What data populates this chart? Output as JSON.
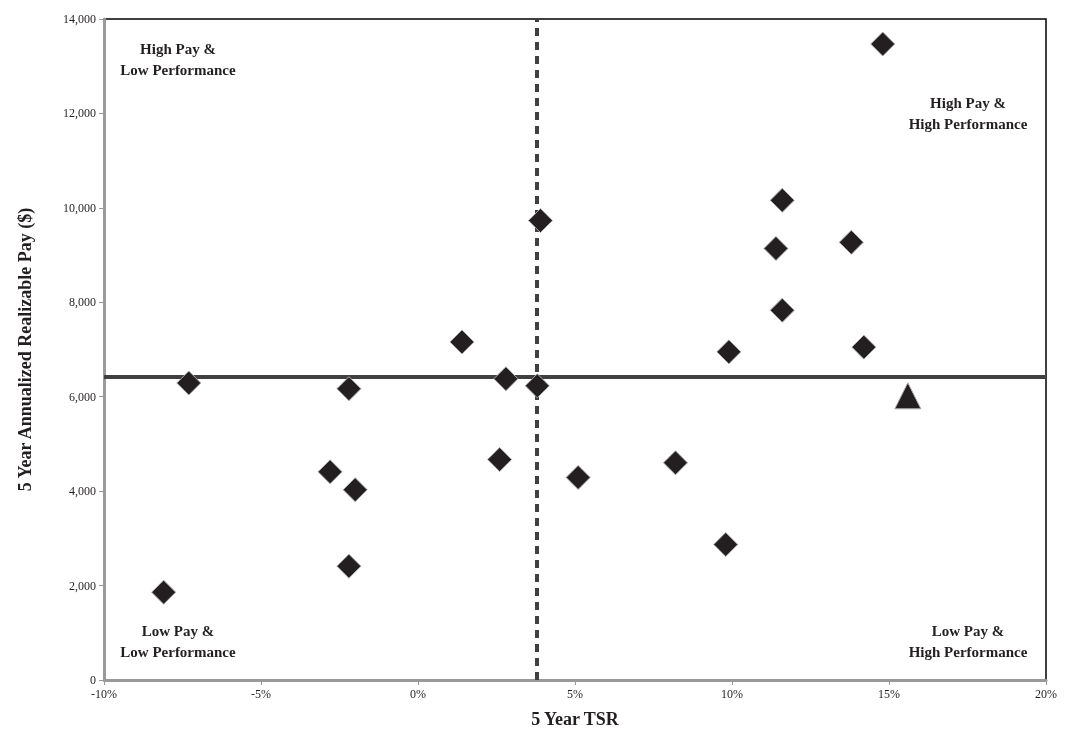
{
  "chart_data": {
    "type": "scatter",
    "xlabel": "5 Year TSR",
    "ylabel": "5 Year Annualized Realizable Pay ($)",
    "xlim": [
      -10,
      20
    ],
    "xticks": [
      {
        "value": -10,
        "label": "-10%"
      },
      {
        "value": -5,
        "label": "-5%"
      },
      {
        "value": 0,
        "label": "0%"
      },
      {
        "value": 5,
        "label": "5%"
      },
      {
        "value": 10,
        "label": "10%"
      },
      {
        "value": 15,
        "label": "15%"
      },
      {
        "value": 20,
        "label": "20%"
      }
    ],
    "ylim": [
      0,
      14000
    ],
    "yticks": [
      {
        "value": 0,
        "label": "0"
      },
      {
        "value": 2000,
        "label": "2,000"
      },
      {
        "value": 4000,
        "label": "4,000"
      },
      {
        "value": 6000,
        "label": "6,000"
      },
      {
        "value": 8000,
        "label": "8,000"
      },
      {
        "value": 10000,
        "label": "10,000"
      },
      {
        "value": 12000,
        "label": "12,000"
      },
      {
        "value": 14000,
        "label": "14,000"
      }
    ],
    "grid": false,
    "marker": "diamond",
    "series": [
      {
        "color": "#231f20",
        "x": [
          -8.1,
          -7.3,
          -2.8,
          -2.2,
          -2.2,
          -2.0,
          1.4,
          2.6,
          2.8,
          3.8,
          3.9,
          5.1,
          8.2,
          9.8,
          9.9,
          11.4,
          11.6,
          11.6,
          13.8,
          14.2,
          14.8
        ],
        "values": [
          1860,
          6290,
          4410,
          2410,
          6170,
          4030,
          7160,
          4670,
          6380,
          6230,
          9730,
          4290,
          4600,
          2870,
          6950,
          9140,
          7830,
          10160,
          9270,
          7050,
          13470
        ]
      },
      {
        "color": "#231f20",
        "marker": "triangle",
        "x": [
          15.6
        ],
        "values": [
          6020
        ]
      }
    ],
    "ref_lines": [
      {
        "axis": "x",
        "value": 3.77,
        "color": "#404040",
        "line_style": "dashed"
      },
      {
        "axis": "y",
        "value": 6420,
        "color": "#404040",
        "line_style": "solid"
      }
    ],
    "annotations": [
      "High Pay &\nLow Performance",
      "High Pay &\nHigh Performance",
      "Low Pay &\nLow Performance",
      "Low Pay &\nHigh Performance"
    ]
  }
}
